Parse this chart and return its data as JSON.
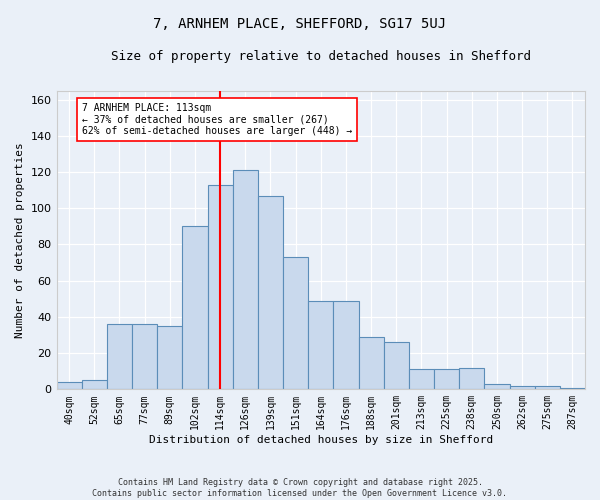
{
  "title1": "7, ARNHEM PLACE, SHEFFORD, SG17 5UJ",
  "title2": "Size of property relative to detached houses in Shefford",
  "xlabel": "Distribution of detached houses by size in Shefford",
  "ylabel": "Number of detached properties",
  "bin_labels": [
    "40sqm",
    "52sqm",
    "65sqm",
    "77sqm",
    "89sqm",
    "102sqm",
    "114sqm",
    "126sqm",
    "139sqm",
    "151sqm",
    "164sqm",
    "176sqm",
    "188sqm",
    "201sqm",
    "213sqm",
    "225sqm",
    "238sqm",
    "250sqm",
    "262sqm",
    "275sqm",
    "287sqm"
  ],
  "bar_values": [
    4,
    5,
    36,
    36,
    35,
    90,
    113,
    121,
    107,
    73,
    49,
    49,
    29,
    26,
    11,
    11,
    12,
    3,
    2,
    2,
    1
  ],
  "bar_color": "#c9d9ed",
  "bar_edge_color": "#5b8db8",
  "vline_x": 6.0,
  "vline_color": "red",
  "annotation_text": "7 ARNHEM PLACE: 113sqm\n← 37% of detached houses are smaller (267)\n62% of semi-detached houses are larger (448) →",
  "annotation_box_color": "white",
  "annotation_box_edge": "red",
  "ylim": [
    0,
    165
  ],
  "yticks": [
    0,
    20,
    40,
    60,
    80,
    100,
    120,
    140,
    160
  ],
  "footer": "Contains HM Land Registry data © Crown copyright and database right 2025.\nContains public sector information licensed under the Open Government Licence v3.0.",
  "bg_color": "#eaf0f8",
  "plot_bg_color": "#eaf0f8"
}
